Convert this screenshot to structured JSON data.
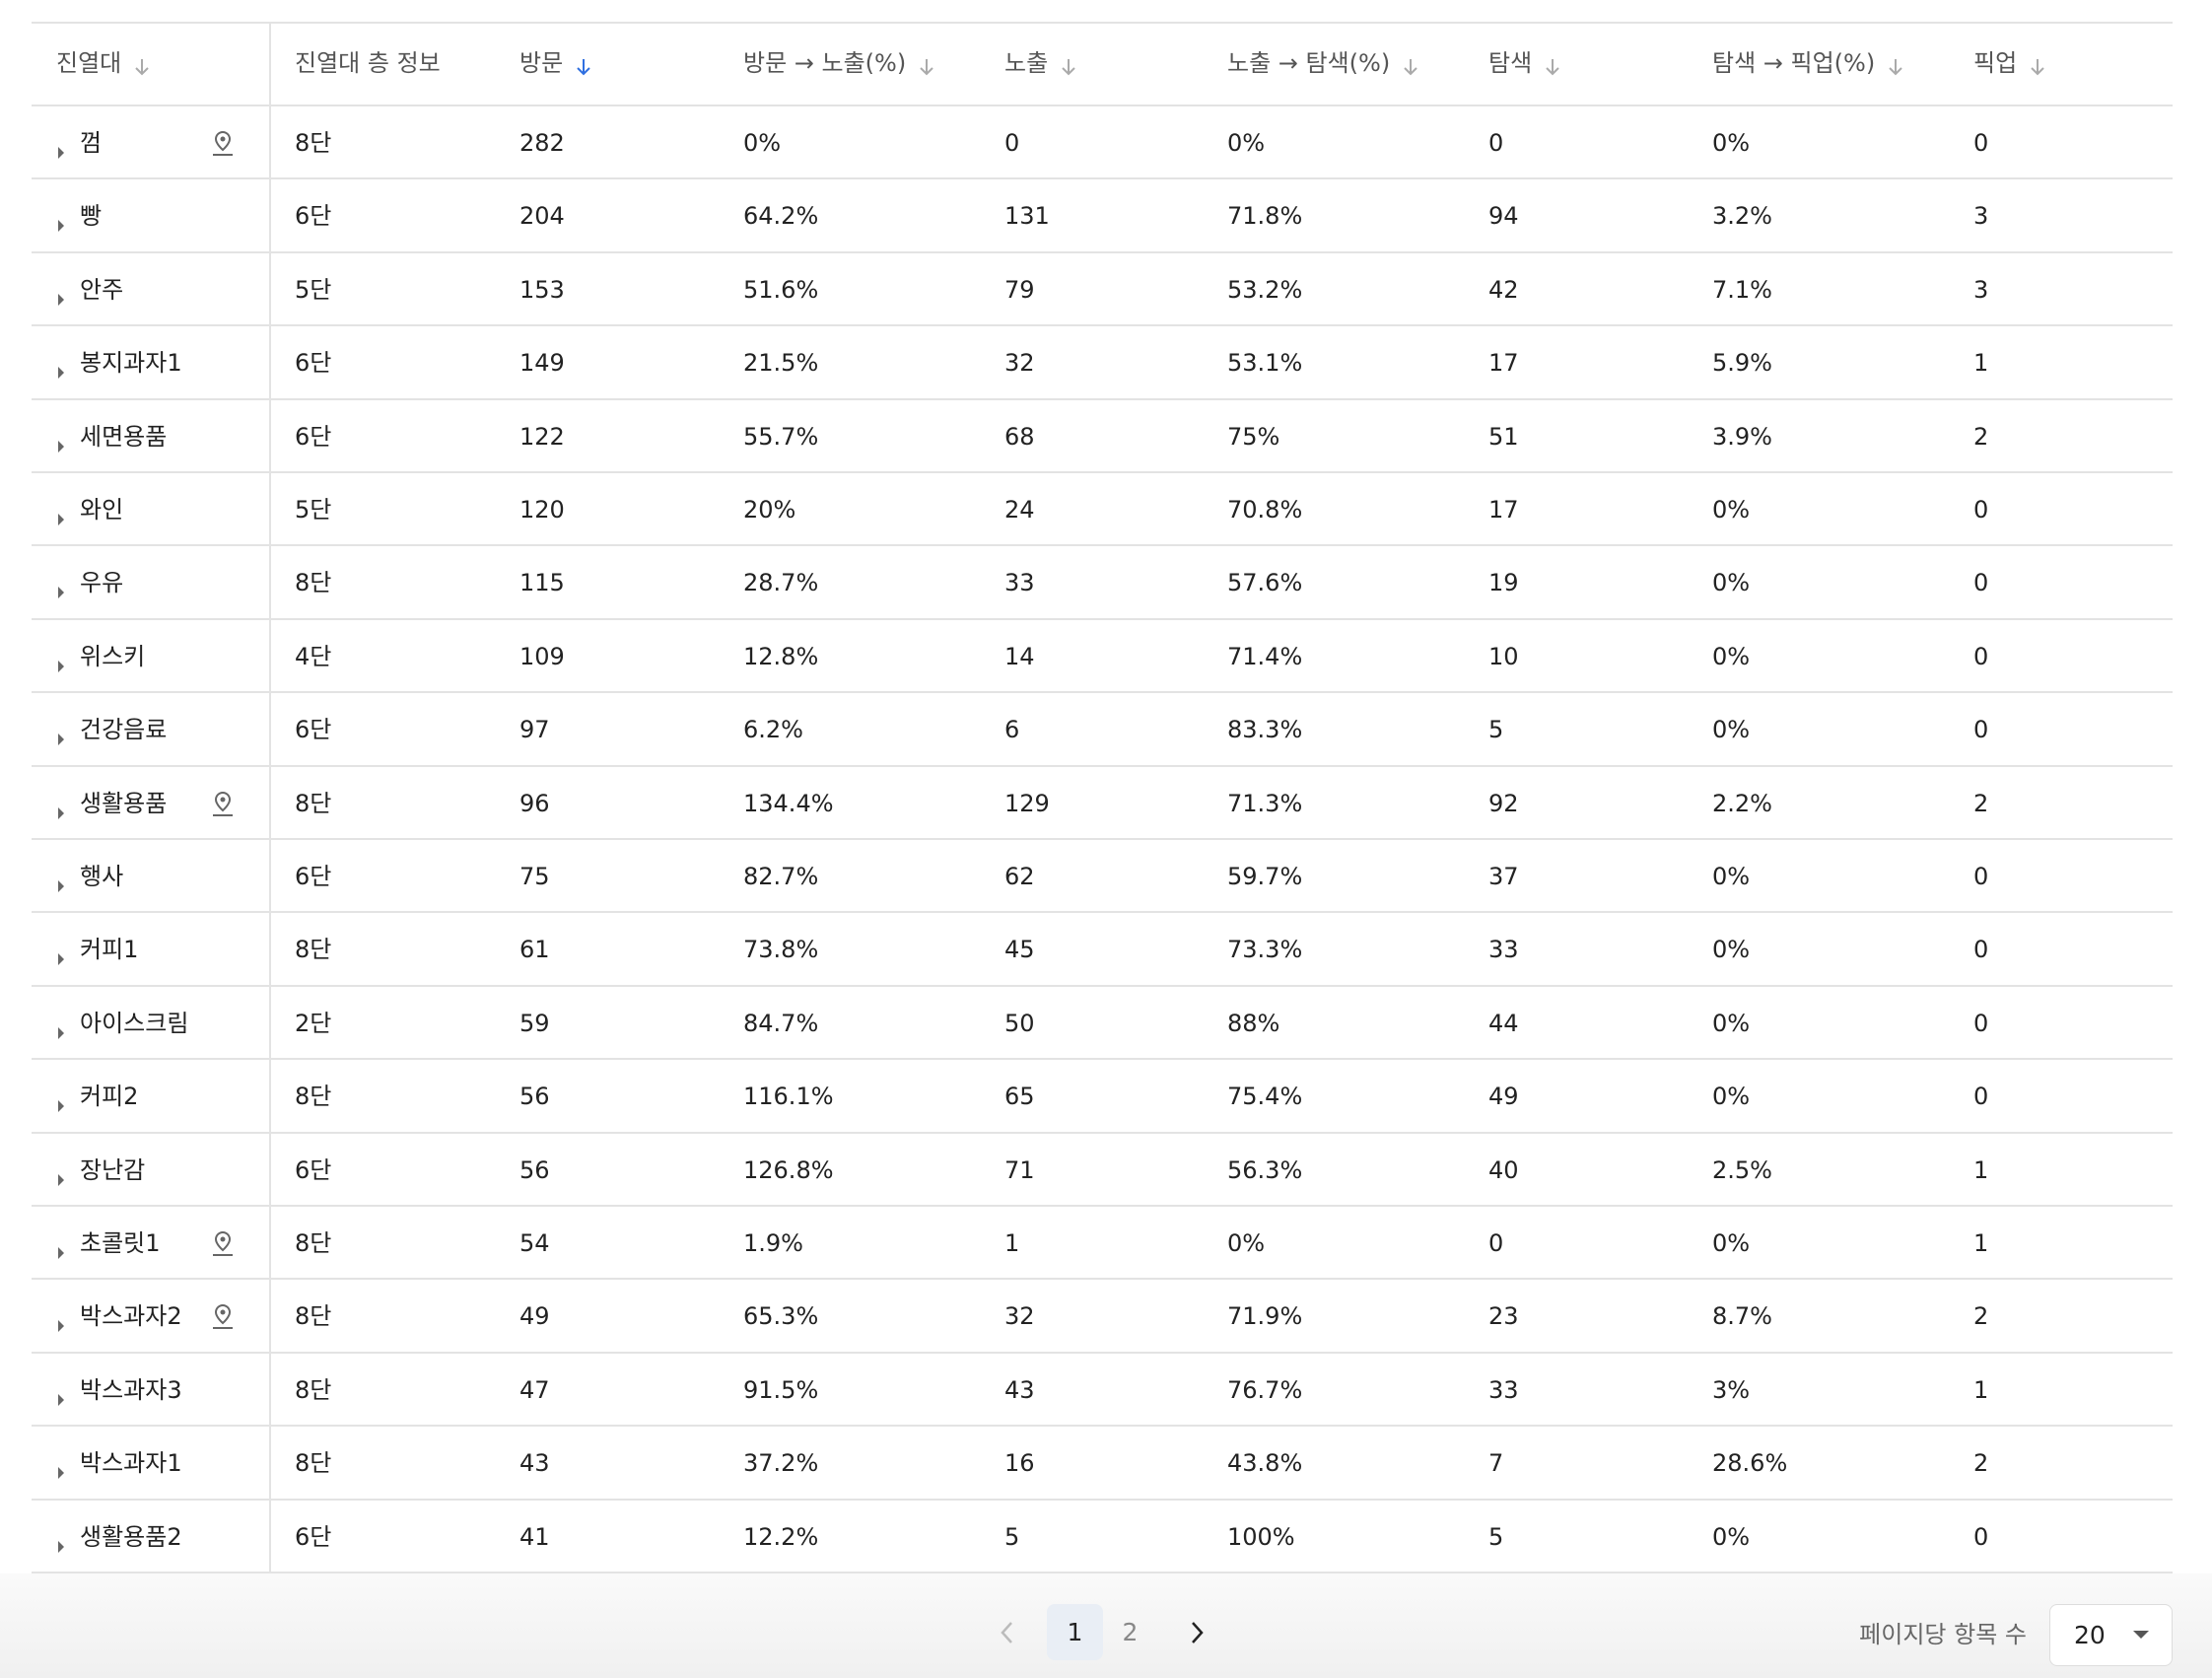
{
  "table": {
    "columns": [
      "진열대",
      "진열대 층 정보",
      "방문",
      "방문 → 노출(%)",
      "노출",
      "노출 → 탐색(%)",
      "탐색",
      "탐색 → 픽업(%)",
      "픽업"
    ],
    "rows": [
      [
        "껌",
        "8단",
        "282",
        "0%",
        "0",
        "0%",
        "0",
        "0%",
        "0"
      ],
      [
        "빵",
        "6단",
        "204",
        "64.2%",
        "131",
        "71.8%",
        "94",
        "3.2%",
        "3"
      ],
      [
        "안주",
        "5단",
        "153",
        "51.6%",
        "79",
        "53.2%",
        "42",
        "7.1%",
        "3"
      ],
      [
        "봉지과자1",
        "6단",
        "149",
        "21.5%",
        "32",
        "53.1%",
        "17",
        "5.9%",
        "1"
      ],
      [
        "세면용품",
        "6단",
        "122",
        "55.7%",
        "68",
        "75%",
        "51",
        "3.9%",
        "2"
      ],
      [
        "와인",
        "5단",
        "120",
        "20%",
        "24",
        "70.8%",
        "17",
        "0%",
        "0"
      ],
      [
        "우유",
        "8단",
        "115",
        "28.7%",
        "33",
        "57.6%",
        "19",
        "0%",
        "0"
      ],
      [
        "위스키",
        "4단",
        "109",
        "12.8%",
        "14",
        "71.4%",
        "10",
        "0%",
        "0"
      ],
      [
        "건강음료",
        "6단",
        "97",
        "6.2%",
        "6",
        "83.3%",
        "5",
        "0%",
        "0"
      ],
      [
        "생활용품",
        "8단",
        "96",
        "134.4%",
        "129",
        "71.3%",
        "92",
        "2.2%",
        "2"
      ],
      [
        "행사",
        "6단",
        "75",
        "82.7%",
        "62",
        "59.7%",
        "37",
        "0%",
        "0"
      ],
      [
        "커피1",
        "8단",
        "61",
        "73.8%",
        "45",
        "73.3%",
        "33",
        "0%",
        "0"
      ],
      [
        "아이스크림",
        "2단",
        "59",
        "84.7%",
        "50",
        "88%",
        "44",
        "0%",
        "0"
      ],
      [
        "커피2",
        "8단",
        "56",
        "116.1%",
        "65",
        "75.4%",
        "49",
        "0%",
        "0"
      ],
      [
        "장난감",
        "6단",
        "56",
        "126.8%",
        "71",
        "56.3%",
        "40",
        "2.5%",
        "1"
      ],
      [
        "초콜릿1",
        "8단",
        "54",
        "1.9%",
        "1",
        "0%",
        "0",
        "0%",
        "1"
      ],
      [
        "박스과자2",
        "8단",
        "49",
        "65.3%",
        "32",
        "71.9%",
        "23",
        "8.7%",
        "2"
      ],
      [
        "박스과자3",
        "8단",
        "47",
        "91.5%",
        "43",
        "76.7%",
        "33",
        "3%",
        "1"
      ],
      [
        "박스과자1",
        "8단",
        "43",
        "37.2%",
        "16",
        "43.8%",
        "7",
        "28.6%",
        "2"
      ],
      [
        "생활용품2",
        "6단",
        "41",
        "12.2%",
        "5",
        "100%",
        "5",
        "0%",
        "0"
      ]
    ]
  },
  "pagination": {
    "pages": [
      "1",
      "2"
    ],
    "current": "1",
    "page_size_label": "페이지당 항목 수",
    "page_size": "20"
  }
}
